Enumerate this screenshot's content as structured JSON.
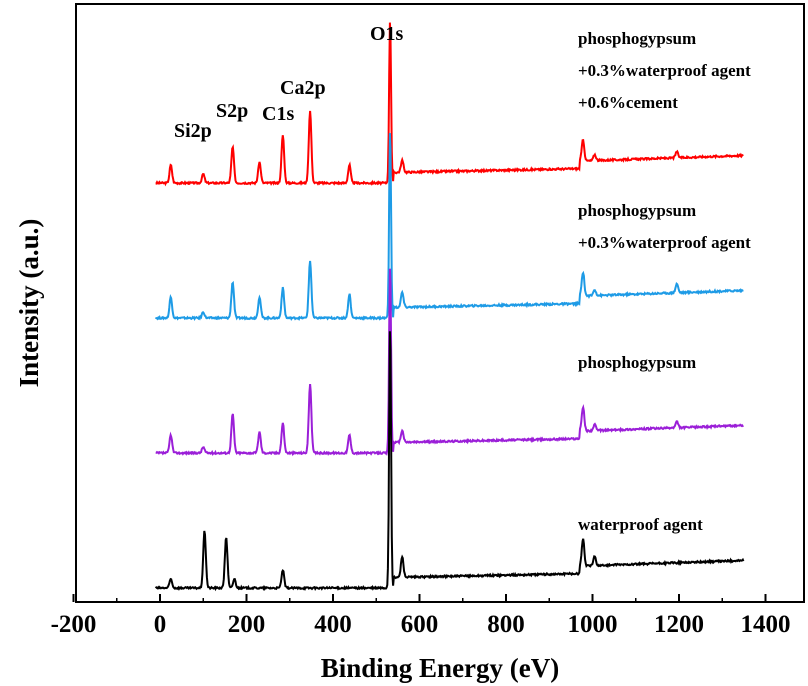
{
  "chart_data": {
    "type": "line",
    "xlabel": "Binding Energy (eV)",
    "ylabel": "Intensity (a.u.)",
    "xlim": [
      -200,
      1500
    ],
    "xticks": [
      -200,
      0,
      200,
      400,
      600,
      800,
      1000,
      1200,
      1400
    ],
    "tick_labels": [
      "-200",
      "0",
      "200",
      "400",
      "600",
      "800",
      "1000",
      "1200",
      "1400"
    ],
    "yticks_shown": false,
    "peak_labels": [
      {
        "text": "Si2p",
        "x": 100
      },
      {
        "text": "S2p",
        "x": 168
      },
      {
        "text": "C1s",
        "x": 284
      },
      {
        "text": "Ca2p",
        "x": 347
      },
      {
        "text": "O1s",
        "x": 532
      }
    ],
    "series": [
      {
        "name_lines": [
          "phosphogypsum",
          "+0.3%waterproof agent",
          "+0.6%cement"
        ],
        "color": "#ff0000",
        "offset": 3.0,
        "peaks": [
          {
            "x": 25,
            "h": 0.06
          },
          {
            "x": 100,
            "h": 0.03
          },
          {
            "x": 168,
            "h": 0.12
          },
          {
            "x": 230,
            "h": 0.07
          },
          {
            "x": 284,
            "h": 0.16
          },
          {
            "x": 347,
            "h": 0.24
          },
          {
            "x": 438,
            "h": 0.06
          },
          {
            "x": 532,
            "h": 0.55
          },
          {
            "x": 560,
            "h": 0.04
          },
          {
            "x": 978,
            "h": 0.07
          },
          {
            "x": 1005,
            "h": 0.02
          },
          {
            "x": 1195,
            "h": 0.02
          }
        ]
      },
      {
        "name_lines": [
          "phosphogypsum",
          "+0.3%waterproof agent"
        ],
        "color": "#1e9be6",
        "offset": 2.0,
        "peaks": [
          {
            "x": 25,
            "h": 0.07
          },
          {
            "x": 100,
            "h": 0.02
          },
          {
            "x": 168,
            "h": 0.12
          },
          {
            "x": 230,
            "h": 0.07
          },
          {
            "x": 284,
            "h": 0.1
          },
          {
            "x": 347,
            "h": 0.19
          },
          {
            "x": 438,
            "h": 0.08
          },
          {
            "x": 532,
            "h": 0.63
          },
          {
            "x": 560,
            "h": 0.05
          },
          {
            "x": 978,
            "h": 0.08
          },
          {
            "x": 1005,
            "h": 0.02
          },
          {
            "x": 1195,
            "h": 0.03
          }
        ]
      },
      {
        "name_lines": [
          "phosphogypsum"
        ],
        "color": "#9b1fd8",
        "offset": 1.0,
        "peaks": [
          {
            "x": 25,
            "h": 0.06
          },
          {
            "x": 100,
            "h": 0.02
          },
          {
            "x": 168,
            "h": 0.13
          },
          {
            "x": 230,
            "h": 0.07
          },
          {
            "x": 284,
            "h": 0.1
          },
          {
            "x": 347,
            "h": 0.23
          },
          {
            "x": 438,
            "h": 0.06
          },
          {
            "x": 532,
            "h": 0.63
          },
          {
            "x": 560,
            "h": 0.04
          },
          {
            "x": 978,
            "h": 0.08
          },
          {
            "x": 1005,
            "h": 0.02
          },
          {
            "x": 1195,
            "h": 0.02
          }
        ]
      },
      {
        "name_lines": [
          "waterproof agent"
        ],
        "color": "#000000",
        "offset": 0.0,
        "peaks": [
          {
            "x": 25,
            "h": 0.03
          },
          {
            "x": 103,
            "h": 0.19
          },
          {
            "x": 153,
            "h": 0.17
          },
          {
            "x": 172,
            "h": 0.03
          },
          {
            "x": 284,
            "h": 0.06
          },
          {
            "x": 532,
            "h": 0.88
          },
          {
            "x": 560,
            "h": 0.07
          },
          {
            "x": 978,
            "h": 0.09
          },
          {
            "x": 1005,
            "h": 0.03
          }
        ]
      }
    ]
  }
}
